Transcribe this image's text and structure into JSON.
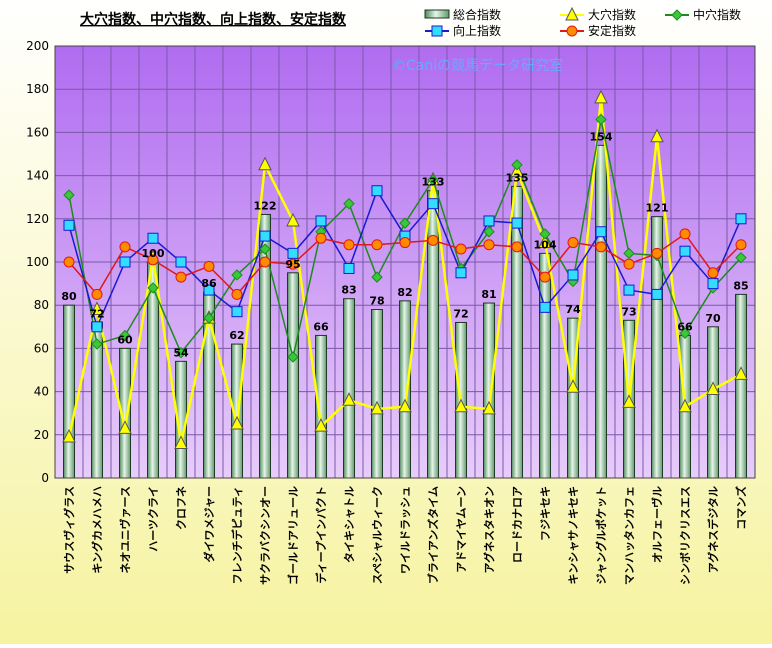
{
  "chart_data": {
    "type": "bar",
    "title": "大穴指数、中穴指数、向上指数、安定指数",
    "watermark": "©Caniの競馬データ研究室",
    "ylim": [
      0,
      200
    ],
    "yticks": [
      0,
      20,
      40,
      60,
      80,
      100,
      120,
      140,
      160,
      180,
      200
    ],
    "grid": true,
    "legend_position": "top-right",
    "categories": [
      "サウスヴィグラス",
      "キングカメハメハ",
      "ネオユニヴァース",
      "ハーツクライ",
      "クロフネ",
      "ダイワメジャー",
      "フレンチデピュティ",
      "サクラバクシンオー",
      "ゴールドアリュール",
      "ディープインパクト",
      "タイキシャトル",
      "スペシャルウィーク",
      "ワイルドラッシュ",
      "ブライアンズタイム",
      "アドマイヤムーン",
      "アグネスタキオン",
      "ロードカナロア",
      "フジキセキ",
      "キンシャサノキセキ",
      "ジャングルポケット",
      "マンハッタンカフェ",
      "オルフェーヴル",
      "シンボリクリスエス",
      "アグネスデジタル",
      "コマンズ"
    ],
    "series": [
      {
        "name": "総合指数",
        "type": "bar",
        "color": "#7fb08a",
        "values": [
          80,
          72,
          60,
          100,
          54,
          86,
          62,
          122,
          95,
          66,
          83,
          78,
          82,
          133,
          72,
          81,
          135,
          104,
          74,
          154,
          73,
          121,
          66,
          70,
          85
        ]
      },
      {
        "name": "大穴指数",
        "type": "line",
        "color": "#ffff00",
        "marker": "triangle",
        "values": [
          19,
          78,
          23,
          102,
          16,
          74,
          25,
          145,
          119,
          24,
          36,
          32,
          33,
          138,
          33,
          32,
          142,
          109,
          42,
          176,
          35,
          158,
          33,
          41,
          48
        ]
      },
      {
        "name": "中穴指数",
        "type": "line",
        "color": "#1e8a1e",
        "marker": "diamond",
        "values": [
          131,
          62,
          66,
          88,
          58,
          74,
          94,
          106,
          56,
          114,
          127,
          93,
          118,
          138,
          97,
          114,
          145,
          113,
          91,
          166,
          104,
          103,
          67,
          88,
          102
        ]
      },
      {
        "name": "向上指数",
        "type": "line",
        "color": "#1a1ad0",
        "marker": "square",
        "values": [
          117,
          70,
          100,
          111,
          100,
          87,
          77,
          112,
          104,
          119,
          97,
          133,
          112,
          127,
          95,
          119,
          118,
          79,
          94,
          114,
          87,
          85,
          105,
          90,
          120
        ]
      },
      {
        "name": "安定指数",
        "type": "line",
        "color": "#e01818",
        "marker": "circle",
        "values": [
          100,
          85,
          107,
          101,
          93,
          98,
          85,
          100,
          99,
          111,
          108,
          108,
          109,
          110,
          106,
          108,
          107,
          93,
          109,
          107,
          99,
          104,
          113,
          95,
          108
        ]
      }
    ]
  }
}
